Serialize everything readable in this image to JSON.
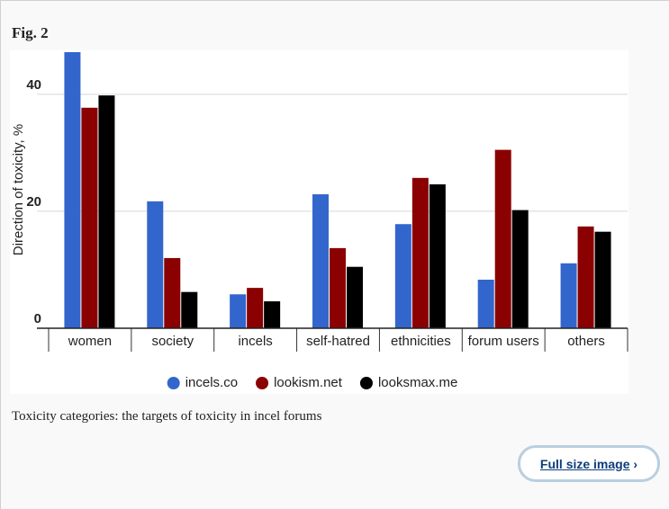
{
  "figure_label": "Fig. 2",
  "chart_data": {
    "type": "bar",
    "y_label": "Direction of toxicity, %",
    "categories": [
      "women",
      "society",
      "incels",
      "self-hatred",
      "ethnicities",
      "forum users",
      "others"
    ],
    "series": [
      {
        "name": "incels.co",
        "color": "#3366cc",
        "values": [
          47.2,
          21.7,
          5.8,
          22.9,
          17.8,
          8.3,
          11.1
        ]
      },
      {
        "name": "lookism.net",
        "color": "#8b0000",
        "values": [
          37.7,
          12.0,
          6.9,
          13.7,
          25.7,
          30.5,
          17.4
        ]
      },
      {
        "name": "looksmax.me",
        "color": "#000000",
        "values": [
          39.8,
          6.2,
          4.6,
          10.5,
          24.6,
          20.2,
          16.5
        ]
      }
    ],
    "ylim": [
      0,
      47.2
    ],
    "yticks": [
      0,
      20,
      40
    ],
    "grid": true
  },
  "caption": "Toxicity categories: the targets of toxicity in incel forums",
  "button": "Full size image"
}
